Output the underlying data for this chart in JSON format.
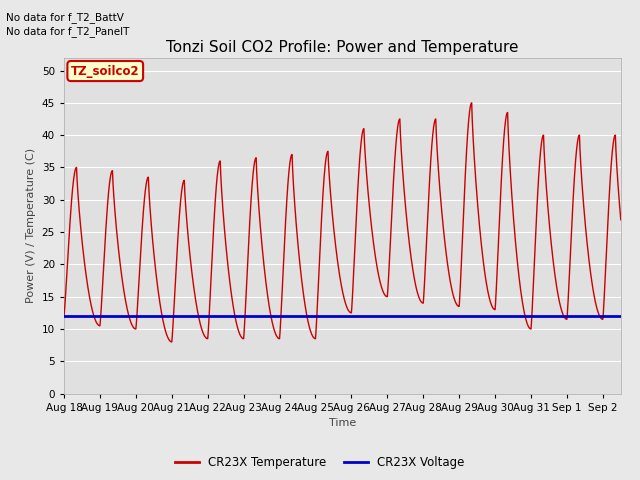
{
  "title": "Tonzi Soil CO2 Profile: Power and Temperature",
  "ylabel": "Power (V) / Temperature (C)",
  "xlabel": "Time",
  "top_left_text_line1": "No data for f_T2_BattV",
  "top_left_text_line2": "No data for f_T2_PanelT",
  "legend_label_text": "TZ_soilco2",
  "legend_labels": [
    "CR23X Temperature",
    "CR23X Voltage"
  ],
  "legend_colors": [
    "#cc0000",
    "#0000cc"
  ],
  "ylim": [
    0,
    52
  ],
  "yticks": [
    0,
    5,
    10,
    15,
    20,
    25,
    30,
    35,
    40,
    45,
    50
  ],
  "background_color": "#e8e8e8",
  "plot_bg_color": "#e0e0e0",
  "grid_color": "#ffffff",
  "temp_color": "#cc0000",
  "voltage_color": "#0000cc",
  "voltage_value": 12.0,
  "x_tick_labels": [
    "Aug 18",
    "Aug 19",
    "Aug 20",
    "Aug 21",
    "Aug 22",
    "Aug 23",
    "Aug 24",
    "Aug 25",
    "Aug 26",
    "Aug 27",
    "Aug 28",
    "Aug 29",
    "Aug 30",
    "Aug 31",
    "Sep 1",
    "Sep 2"
  ],
  "title_fontsize": 11,
  "label_fontsize": 8,
  "tick_fontsize": 7.5,
  "daily_peaks": [
    35,
    34.5,
    33.5,
    33,
    36,
    36.5,
    37,
    37.5,
    41,
    42.5,
    42.5,
    45,
    43.5,
    40,
    40
  ],
  "daily_mins": [
    12,
    10.5,
    10.0,
    8,
    8.5,
    8.5,
    8.5,
    8.5,
    12.5,
    15,
    14,
    13.5,
    13,
    10,
    11.5
  ]
}
